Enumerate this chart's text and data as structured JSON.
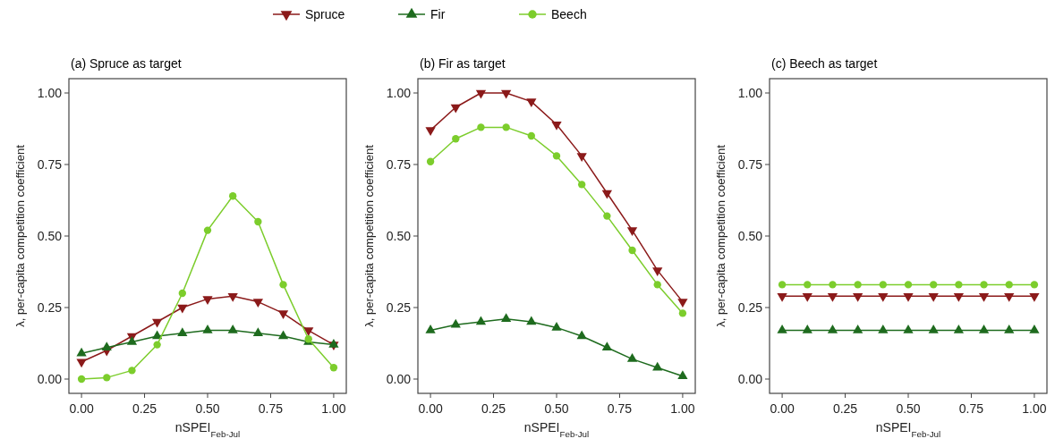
{
  "chart_data": [
    {
      "type": "line",
      "title": "(a) Spruce as target",
      "xlabel": "nSPEI$_{Feb-Jul}$",
      "ylabel": "λ, per-capita competition coefficient",
      "legend": "top",
      "grid": false,
      "x": [
        0,
        0.1,
        0.2,
        0.3,
        0.4,
        0.5,
        0.6,
        0.7,
        0.8,
        0.9,
        1.0
      ],
      "xlim": [
        -0.05,
        1.05
      ],
      "ylim": [
        -0.05,
        1.05
      ],
      "xticks": [
        {
          "value": 0,
          "label": "0.00"
        },
        {
          "value": 0.25,
          "label": "0.25"
        },
        {
          "value": 0.5,
          "label": "0.50"
        },
        {
          "value": 0.75,
          "label": "0.75"
        },
        {
          "value": 1,
          "label": "1.00"
        }
      ],
      "yticks": [
        {
          "value": 0,
          "label": "0.00"
        },
        {
          "value": 0.25,
          "label": "0.25"
        },
        {
          "value": 0.5,
          "label": "0.50"
        },
        {
          "value": 0.75,
          "label": "0.75"
        },
        {
          "value": 1,
          "label": "1.00"
        }
      ],
      "series": [
        {
          "name": "Spruce",
          "color": "#8b1a1a",
          "marker": "triangle-down",
          "values": [
            0.06,
            0.1,
            0.15,
            0.2,
            0.25,
            0.28,
            0.29,
            0.27,
            0.23,
            0.17,
            0.12
          ]
        },
        {
          "name": "Fir",
          "color": "#1e6b1e",
          "marker": "triangle",
          "values": [
            0.09,
            0.11,
            0.13,
            0.15,
            0.16,
            0.17,
            0.17,
            0.16,
            0.15,
            0.13,
            0.12
          ]
        },
        {
          "name": "Beech",
          "color": "#7ccd2c",
          "marker": "circle",
          "values": [
            0.0,
            0.005,
            0.03,
            0.12,
            0.3,
            0.52,
            0.64,
            0.55,
            0.33,
            0.14,
            0.04
          ]
        }
      ]
    },
    {
      "type": "line",
      "title": "(b) Fir as target",
      "xlabel": "nSPEI$_{Feb-Jul}$",
      "ylabel": "λ, per-capita competition coefficient",
      "grid": false,
      "x": [
        0,
        0.1,
        0.2,
        0.3,
        0.4,
        0.5,
        0.6,
        0.7,
        0.8,
        0.9,
        1.0
      ],
      "xlim": [
        -0.05,
        1.05
      ],
      "ylim": [
        -0.05,
        1.05
      ],
      "xticks": [
        {
          "value": 0,
          "label": "0.00"
        },
        {
          "value": 0.25,
          "label": "0.25"
        },
        {
          "value": 0.5,
          "label": "0.50"
        },
        {
          "value": 0.75,
          "label": "0.75"
        },
        {
          "value": 1,
          "label": "1.00"
        }
      ],
      "yticks": [
        {
          "value": 0,
          "label": "0.00"
        },
        {
          "value": 0.25,
          "label": "0.25"
        },
        {
          "value": 0.5,
          "label": "0.50"
        },
        {
          "value": 0.75,
          "label": "0.75"
        },
        {
          "value": 1,
          "label": "1.00"
        }
      ],
      "series": [
        {
          "color": "#8b1a1a",
          "marker": "triangle-down",
          "values": [
            0.87,
            0.95,
            1.0,
            1.0,
            0.97,
            0.89,
            0.78,
            0.65,
            0.52,
            0.38,
            0.27
          ]
        },
        {
          "color": "#1e6b1e",
          "marker": "triangle",
          "values": [
            0.17,
            0.19,
            0.2,
            0.21,
            0.2,
            0.18,
            0.15,
            0.11,
            0.07,
            0.04,
            0.01
          ]
        },
        {
          "color": "#7ccd2c",
          "marker": "circle",
          "values": [
            0.76,
            0.84,
            0.88,
            0.88,
            0.85,
            0.78,
            0.68,
            0.57,
            0.45,
            0.33,
            0.23
          ]
        }
      ]
    },
    {
      "type": "line",
      "title": "(c) Beech as target",
      "xlabel": "nSPEI$_{Feb-Jul}$",
      "ylabel": "λ, per-capita competition coefficient",
      "grid": false,
      "x": [
        0,
        0.1,
        0.2,
        0.3,
        0.4,
        0.5,
        0.6,
        0.7,
        0.8,
        0.9,
        1.0
      ],
      "xlim": [
        -0.05,
        1.05
      ],
      "ylim": [
        -0.05,
        1.05
      ],
      "xticks": [
        {
          "value": 0,
          "label": "0.00"
        },
        {
          "value": 0.25,
          "label": "0.25"
        },
        {
          "value": 0.5,
          "label": "0.50"
        },
        {
          "value": 0.75,
          "label": "0.75"
        },
        {
          "value": 1,
          "label": "1.00"
        }
      ],
      "yticks": [
        {
          "value": 0,
          "label": "0.00"
        },
        {
          "value": 0.25,
          "label": "0.25"
        },
        {
          "value": 0.5,
          "label": "0.50"
        },
        {
          "value": 0.75,
          "label": "0.75"
        },
        {
          "value": 1,
          "label": "1.00"
        }
      ],
      "series": [
        {
          "color": "#8b1a1a",
          "marker": "triangle-down",
          "values": [
            0.29,
            0.29,
            0.29,
            0.29,
            0.29,
            0.29,
            0.29,
            0.29,
            0.29,
            0.29,
            0.29
          ]
        },
        {
          "color": "#1e6b1e",
          "marker": "triangle",
          "values": [
            0.17,
            0.17,
            0.17,
            0.17,
            0.17,
            0.17,
            0.17,
            0.17,
            0.17,
            0.17,
            0.17
          ]
        },
        {
          "color": "#7ccd2c",
          "marker": "circle",
          "values": [
            0.33,
            0.33,
            0.33,
            0.33,
            0.33,
            0.33,
            0.33,
            0.33,
            0.33,
            0.33,
            0.33
          ]
        }
      ]
    }
  ]
}
